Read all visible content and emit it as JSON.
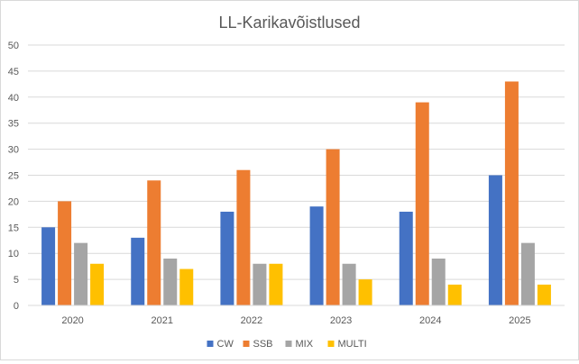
{
  "chart_data": {
    "type": "bar",
    "title": "LL-Karikavõistlused",
    "xlabel": "",
    "ylabel": "",
    "ylim": [
      0,
      50
    ],
    "yticks": [
      0,
      5,
      10,
      15,
      20,
      25,
      30,
      35,
      40,
      45,
      50
    ],
    "grid": true,
    "legend_position": "bottom",
    "categories": [
      "2020",
      "2021",
      "2022",
      "2023",
      "2024",
      "2025"
    ],
    "series": [
      {
        "name": "CW",
        "color": "#4472c4",
        "values": [
          15,
          13,
          18,
          19,
          18,
          25
        ]
      },
      {
        "name": "SSB",
        "color": "#ed7d31",
        "values": [
          20,
          24,
          26,
          30,
          39,
          43
        ]
      },
      {
        "name": "MIX",
        "color": "#a5a5a5",
        "values": [
          12,
          9,
          8,
          8,
          9,
          12
        ]
      },
      {
        "name": "MULTI",
        "color": "#ffc000",
        "values": [
          8,
          7,
          8,
          5,
          4,
          4
        ]
      }
    ]
  }
}
